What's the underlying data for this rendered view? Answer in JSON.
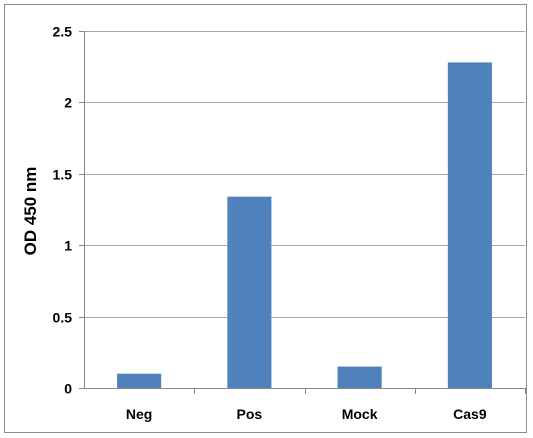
{
  "chart_data": {
    "type": "bar",
    "title": "",
    "xlabel": "",
    "ylabel": "OD 450 nm",
    "categories": [
      "Neg",
      "Pos",
      "Mock",
      "Cas9"
    ],
    "values": [
      0.1,
      1.34,
      0.15,
      2.28
    ],
    "ylim": [
      0,
      2.5
    ],
    "yticks": [
      0,
      0.5,
      1,
      1.5,
      2,
      2.5
    ],
    "ytick_labels": [
      "0",
      "0.5",
      "1",
      "1.5",
      "2",
      "2.5"
    ],
    "grid": true,
    "legend": "none",
    "bar_color": "#4f81bd",
    "grid_color": "#a6a6a6",
    "axis_color": "#868686",
    "border_color": "#8c8c8c"
  }
}
